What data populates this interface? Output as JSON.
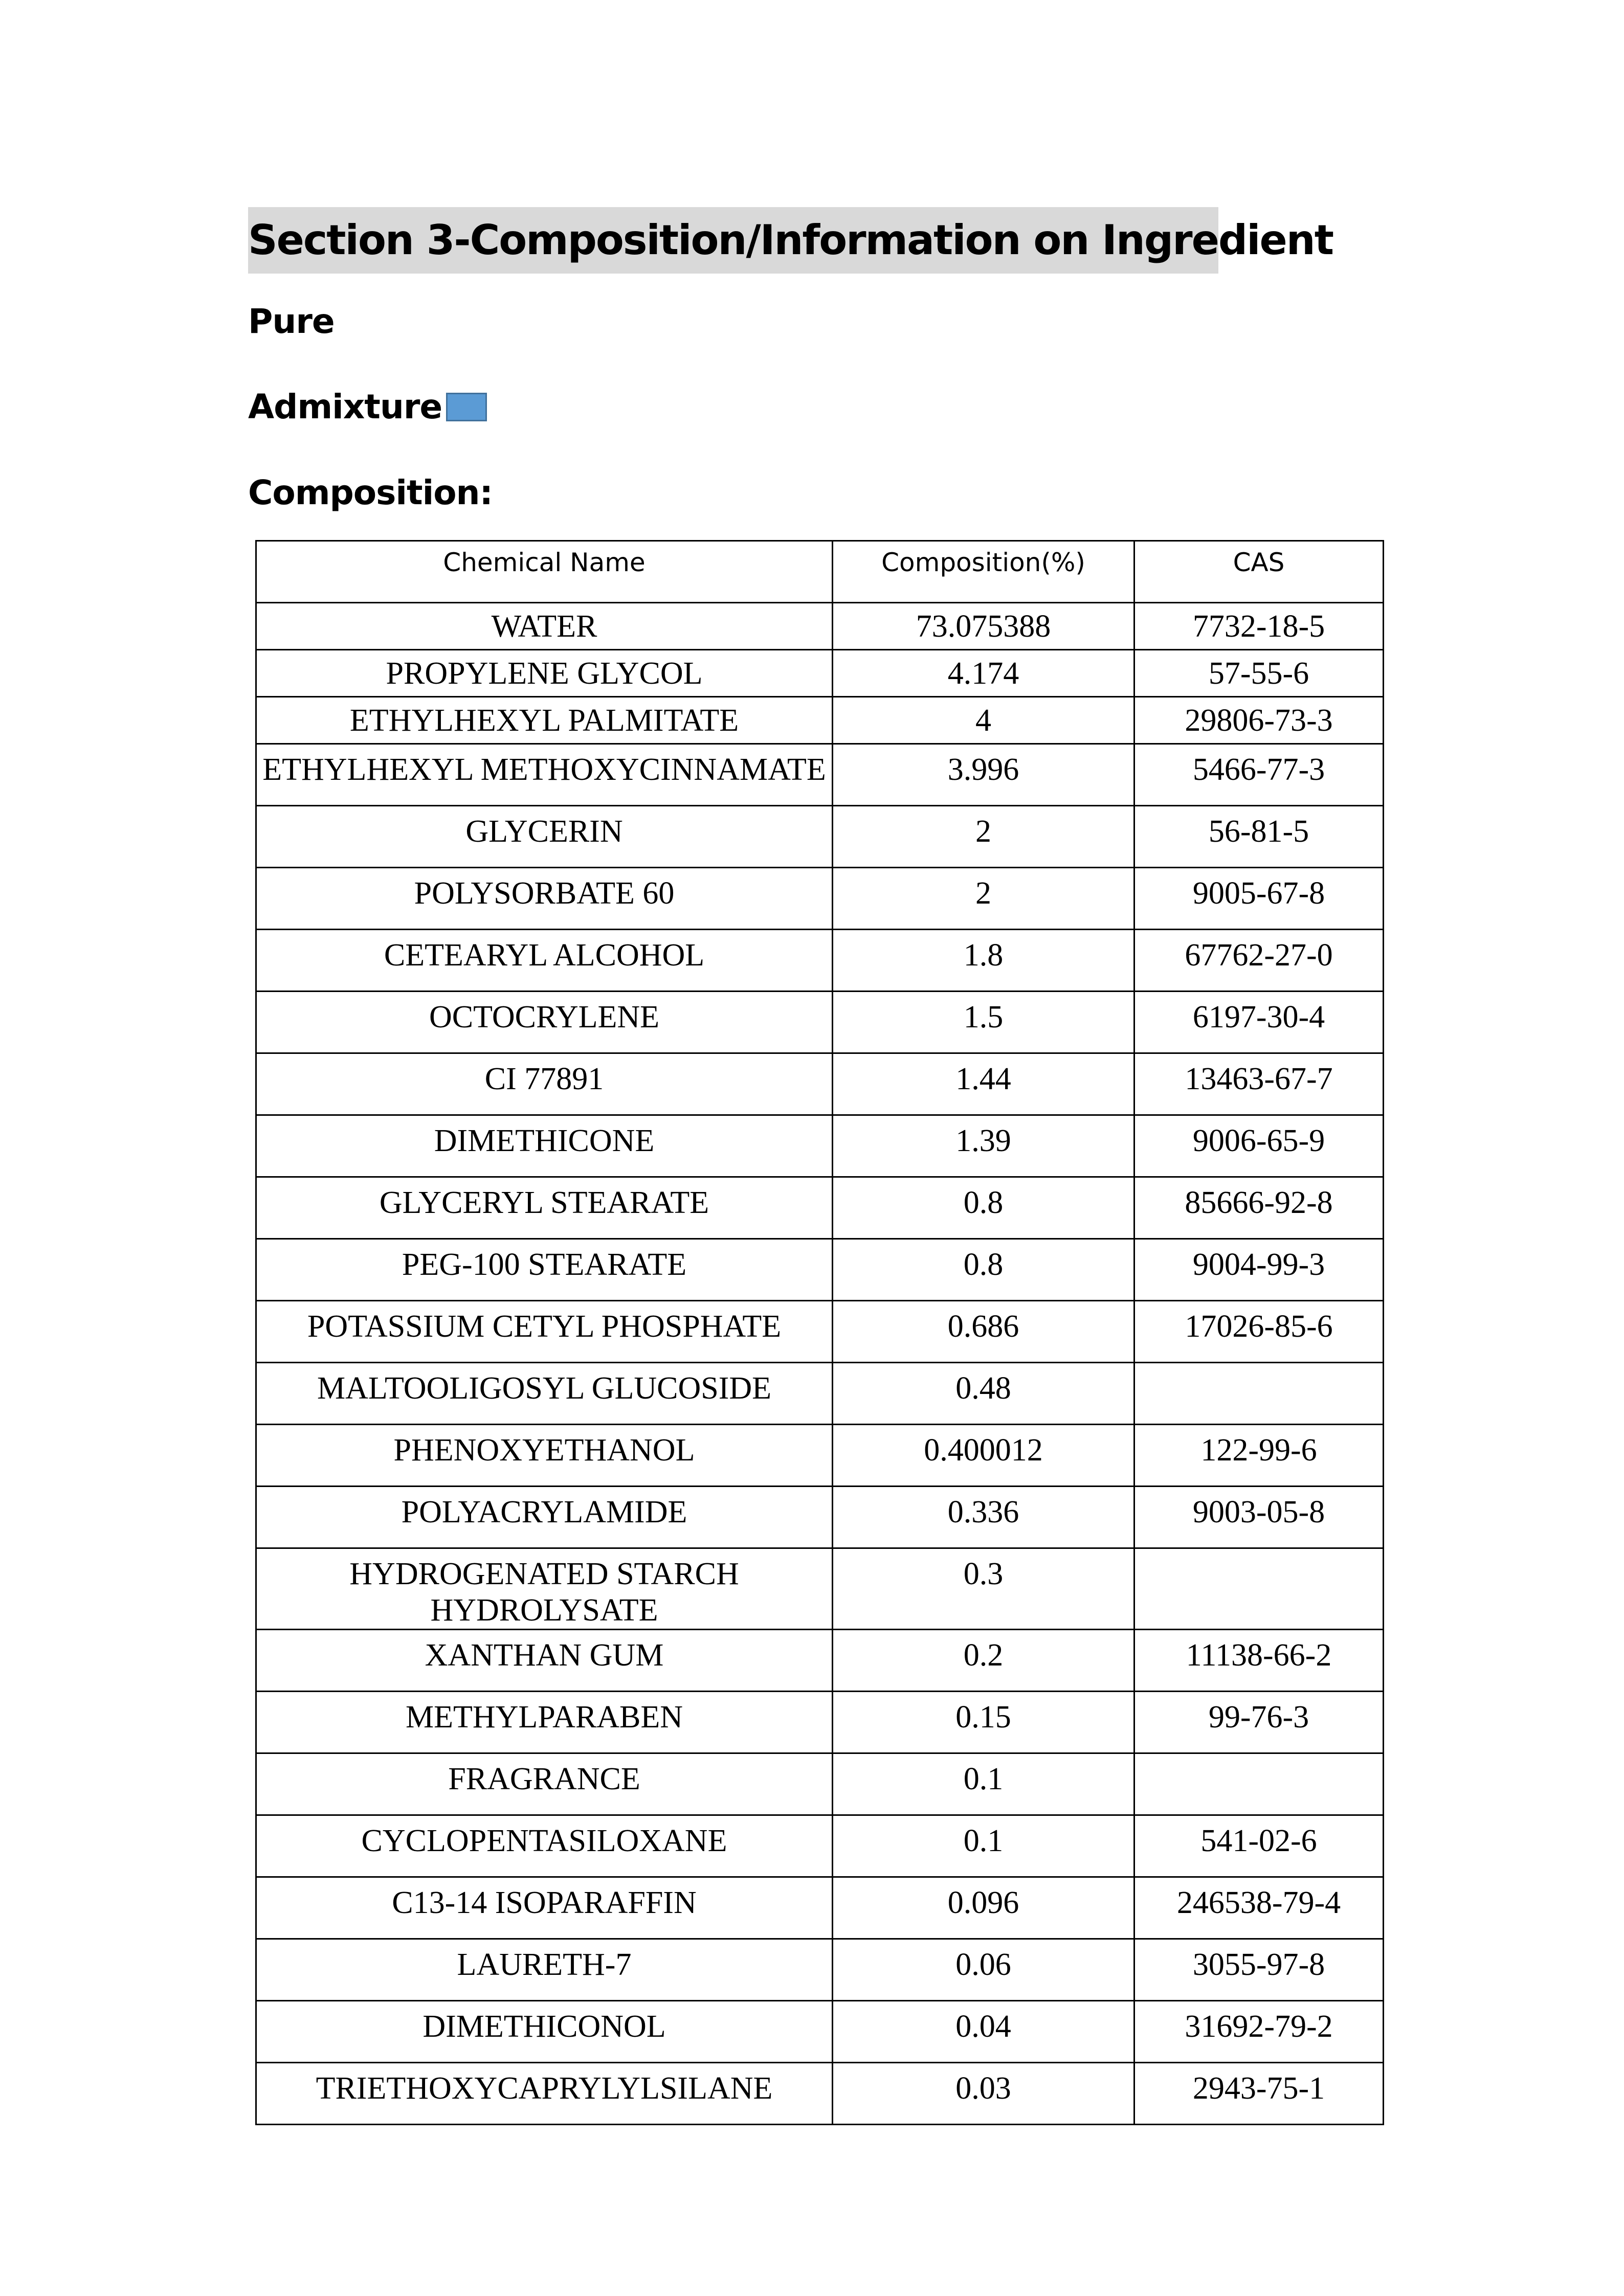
{
  "section_title": "Section 3-Composition/Information on Ingredient",
  "pure_label": "Pure",
  "admixture_label": "Admixture",
  "admixture_checkbox": {
    "icon": "filled-square-checkbox",
    "color": "#5b9bd5"
  },
  "composition_label": "Composition:",
  "table": {
    "headers": [
      "Chemical Name",
      "Composition(%)",
      "CAS"
    ],
    "rows": [
      [
        "WATER",
        "73.075388",
        "7732-18-5"
      ],
      [
        "PROPYLENE GLYCOL",
        "4.174",
        "57-55-6"
      ],
      [
        "ETHYLHEXYL PALMITATE",
        "4",
        "29806-73-3"
      ],
      [
        "ETHYLHEXYL METHOXYCINNAMATE",
        "3.996",
        "5466-77-3"
      ],
      [
        "GLYCERIN",
        "2",
        "56-81-5"
      ],
      [
        "POLYSORBATE 60",
        "2",
        "9005-67-8"
      ],
      [
        "CETEARYL ALCOHOL",
        "1.8",
        "67762-27-0"
      ],
      [
        "OCTOCRYLENE",
        "1.5",
        "6197-30-4"
      ],
      [
        "CI 77891",
        "1.44",
        "13463-67-7"
      ],
      [
        "DIMETHICONE",
        "1.39",
        "9006-65-9"
      ],
      [
        "GLYCERYL STEARATE",
        "0.8",
        "85666-92-8"
      ],
      [
        "PEG-100 STEARATE",
        "0.8",
        "9004-99-3"
      ],
      [
        "POTASSIUM CETYL PHOSPHATE",
        "0.686",
        "17026-85-6"
      ],
      [
        "MALTOOLIGOSYL GLUCOSIDE",
        "0.48",
        ""
      ],
      [
        "PHENOXYETHANOL",
        "0.400012",
        "122-99-6"
      ],
      [
        "POLYACRYLAMIDE",
        "0.336",
        "9003-05-8"
      ],
      [
        "HYDROGENATED STARCH HYDROLYSATE",
        "0.3",
        ""
      ],
      [
        "XANTHAN GUM",
        "0.2",
        "11138-66-2"
      ],
      [
        "METHYLPARABEN",
        "0.15",
        "99-76-3"
      ],
      [
        "FRAGRANCE",
        "0.1",
        ""
      ],
      [
        "CYCLOPENTASILOXANE",
        "0.1",
        "541-02-6"
      ],
      [
        "C13-14 ISOPARAFFIN",
        "0.096",
        "246538-79-4"
      ],
      [
        "LAURETH-7",
        "0.06",
        "3055-97-8"
      ],
      [
        "DIMETHICONOL",
        "0.04",
        "31692-79-2"
      ],
      [
        "TRIETHOXYCAPRYLYLSILANE",
        "0.03",
        "2943-75-1"
      ]
    ]
  }
}
